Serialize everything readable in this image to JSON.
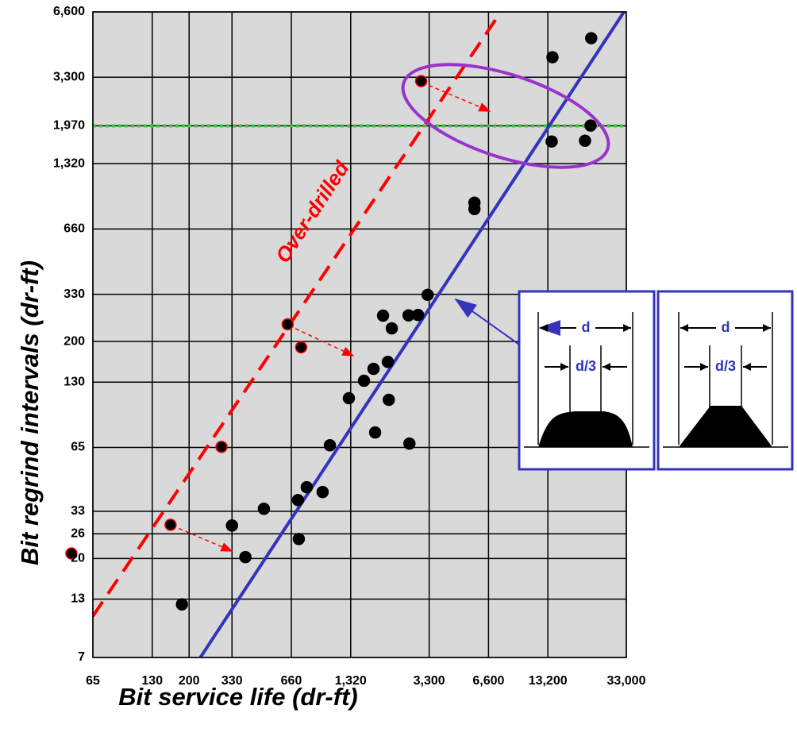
{
  "chart_data": {
    "type": "scatter",
    "x_label": "Bit service life (dr-ft)",
    "y_label": "Bit regrind intervals (dr-ft)",
    "log_x": true,
    "log_y": true,
    "grid": true,
    "xlim": [
      65,
      33000
    ],
    "ylim": [
      7,
      6600
    ],
    "xticks": [
      65,
      130,
      200,
      330,
      660,
      {
        "value": 1320,
        "label": "1,320"
      },
      {
        "value": 3300,
        "label": "3,300"
      },
      {
        "value": 6600,
        "label": "6,600"
      },
      {
        "value": 13200,
        "label": "13,200"
      },
      {
        "value": 33000,
        "label": "33,000"
      }
    ],
    "yticks": [
      7,
      13,
      20,
      26,
      33,
      65,
      130,
      200,
      330,
      660,
      {
        "value": 1320,
        "label": "1,320"
      },
      {
        "value": 1970,
        "label": "1,970"
      },
      {
        "value": 3300,
        "label": "3,300"
      },
      {
        "value": 6600,
        "label": "6,600"
      }
    ],
    "series": [
      {
        "color": "#000000",
        "edge": "#ff0000",
        "x": [
          50.6,
          161,
          292,
          632,
          740,
          3006
        ],
        "y": [
          21.1,
          28.6,
          65.4,
          240,
          188,
          3168
        ]
      },
      {
        "color": "#000000",
        "edge": "#000000",
        "x": [
          184,
          330,
          386,
          479,
          713,
          720,
          790,
          951,
          1035,
          1292,
          1542,
          1723,
          1756,
          1926,
          2037,
          2060,
          2133,
          2594,
          2620,
          2898,
          3243,
          5600,
          5600,
          13800,
          13930,
          20370,
          21730,
          21900
        ],
        "y": [
          12.3,
          28.4,
          20.3,
          33.9,
          37.2,
          24.6,
          42.6,
          40.5,
          66.5,
          109.5,
          131.8,
          149.6,
          76.2,
          263,
          161,
          107.7,
          230,
          264,
          67.7,
          265,
          328,
          872,
          815,
          1669,
          4081,
          1683,
          1976,
          4995
        ]
      }
    ],
    "lines": [
      {
        "color": "#ff0000",
        "style": "dashed",
        "x": [
          65,
          7620
        ],
        "y": [
          10.85,
          6600
        ]
      },
      {
        "color": "#3333bb",
        "style": "solid",
        "x": [
          228,
          32100
        ],
        "y": [
          7,
          6600
        ]
      }
    ],
    "reference_y": {
      "value": 1970,
      "color": "#33cc33"
    },
    "annotation": "Over-drilled",
    "insets": [
      {
        "labels": [
          "d",
          "d/3"
        ]
      },
      {
        "labels": [
          "d",
          "d/3"
        ]
      }
    ]
  }
}
